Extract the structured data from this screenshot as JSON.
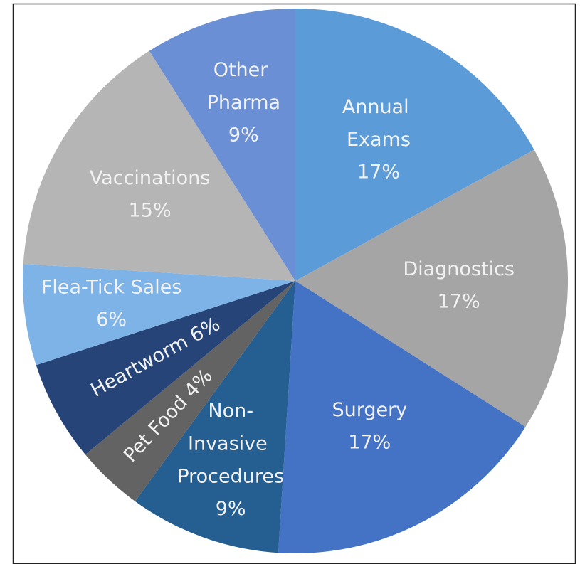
{
  "chart_data": {
    "type": "pie",
    "categories": [
      "Annual Exams",
      "Diagnostics",
      "Surgery",
      "Non-Invasive Procedures",
      "Pet Food",
      "Heartworm",
      "Flea-Tick Sales",
      "Vaccinations",
      "Other Pharma"
    ],
    "values": [
      17,
      17,
      17,
      9,
      4,
      6,
      6,
      15,
      9
    ],
    "value_labels": [
      "17%",
      "17%",
      "17%",
      "9%",
      "4%",
      "6%",
      "6%",
      "15%",
      "9%"
    ],
    "colors": [
      "#5b9bd8",
      "#a5a5a5",
      "#4472c4",
      "#255e91",
      "#636363",
      "#264478",
      "#7db3e6",
      "#b5b5b5",
      "#6a8fd4"
    ]
  }
}
